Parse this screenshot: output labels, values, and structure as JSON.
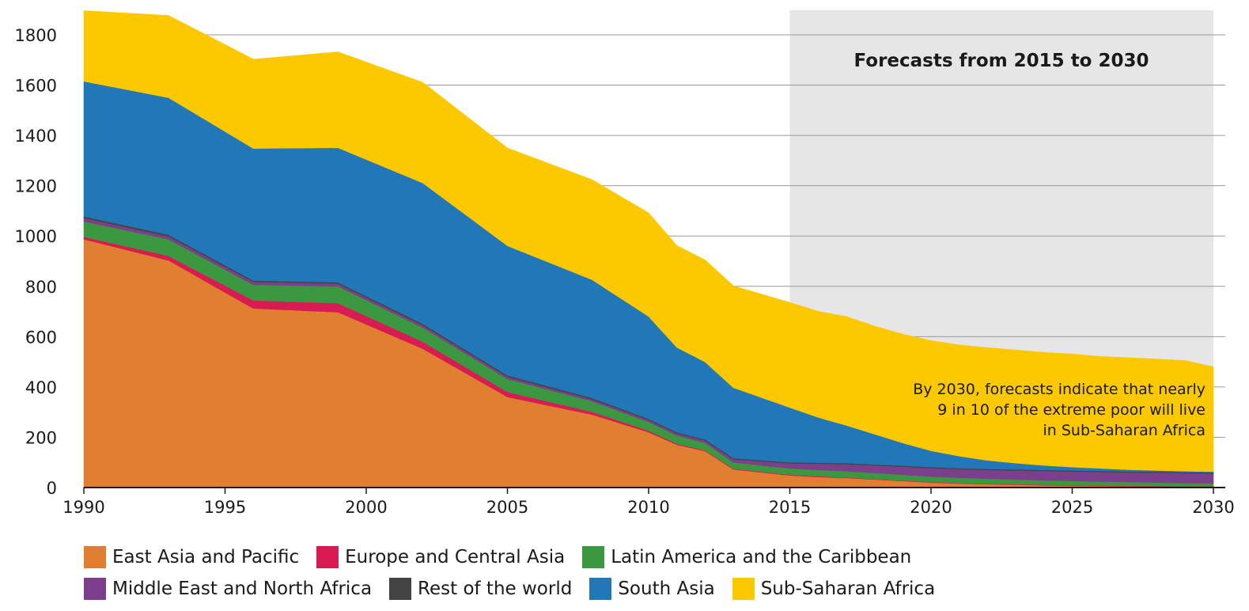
{
  "chart_data": {
    "type": "area",
    "stacked": true,
    "title": "",
    "xlabel": "",
    "ylabel": "",
    "x": [
      1990,
      1993,
      1996,
      1999,
      2002,
      2005,
      2008,
      2010,
      2011,
      2012,
      2013,
      2015,
      2016,
      2017,
      2018,
      2019,
      2020,
      2021,
      2022,
      2023,
      2024,
      2025,
      2026,
      2027,
      2028,
      2029,
      2030
    ],
    "xlim": [
      1990,
      2030
    ],
    "ylim": [
      0,
      1900
    ],
    "x_ticks": [
      1990,
      1995,
      2000,
      2005,
      2010,
      2015,
      2020,
      2025,
      2030
    ],
    "y_ticks": [
      0,
      200,
      400,
      600,
      800,
      1000,
      1200,
      1400,
      1600,
      1800
    ],
    "grid": "horizontal",
    "series": [
      {
        "name": "East Asia and Pacific",
        "color": "#E07E31",
        "values": [
          987,
          903,
          712,
          697,
          552,
          360,
          290,
          220,
          170,
          145,
          72,
          48,
          42,
          38,
          32,
          26,
          20,
          16,
          13,
          11,
          9,
          7,
          6,
          5,
          4,
          3,
          3
        ]
      },
      {
        "name": "Europe and Central Asia",
        "color": "#D81B52",
        "values": [
          10,
          18,
          32,
          36,
          28,
          20,
          11,
          6,
          4,
          3,
          3,
          3,
          3,
          2,
          2,
          2,
          2,
          2,
          2,
          2,
          2,
          2,
          2,
          2,
          2,
          2,
          2
        ]
      },
      {
        "name": "Latin America and the Caribbean",
        "color": "#3C9840",
        "values": [
          61,
          66,
          62,
          67,
          56,
          52,
          42,
          35,
          33,
          30,
          25,
          25,
          25,
          25,
          24,
          23,
          22,
          21,
          20,
          19,
          18,
          17,
          16,
          15,
          14,
          13,
          12
        ]
      },
      {
        "name": "Middle East and North Africa",
        "color": "#7B3F8C",
        "values": [
          14,
          12,
          12,
          11,
          10,
          9,
          8,
          8,
          9,
          9,
          13,
          20,
          25,
          28,
          30,
          32,
          33,
          34,
          35,
          36,
          37,
          38,
          38,
          38,
          39,
          39,
          39
        ]
      },
      {
        "name": "Rest of the world",
        "color": "#444444",
        "values": [
          6,
          6,
          5,
          5,
          5,
          5,
          5,
          4,
          4,
          4,
          4,
          4,
          4,
          4,
          4,
          4,
          4,
          4,
          4,
          4,
          4,
          4,
          4,
          4,
          4,
          4,
          4
        ]
      },
      {
        "name": "South Asia",
        "color": "#2277B7",
        "values": [
          537,
          545,
          525,
          535,
          560,
          515,
          470,
          407,
          337,
          308,
          280,
          218,
          180,
          150,
          120,
          90,
          65,
          48,
          34,
          25,
          18,
          13,
          10,
          7,
          5,
          4,
          3
        ]
      },
      {
        "name": "Sub-Saharan Africa",
        "color": "#FCC800",
        "values": [
          281,
          327,
          355,
          381,
          400,
          389,
          398,
          412,
          405,
          406,
          405,
          418,
          422,
          433,
          430,
          433,
          438,
          442,
          448,
          450,
          449,
          450,
          445,
          445,
          443,
          440,
          417
        ]
      }
    ],
    "forecast_region": {
      "from": 2015,
      "to": 2030,
      "label": "Forecasts from 2015 to 2030",
      "color": "#E6E6E6"
    },
    "annotation": [
      "By 2030, forecasts indicate that nearly",
      "9 in 10 of the extreme poor will live",
      "in Sub-Saharan Africa"
    ],
    "legend_position": "bottom"
  }
}
